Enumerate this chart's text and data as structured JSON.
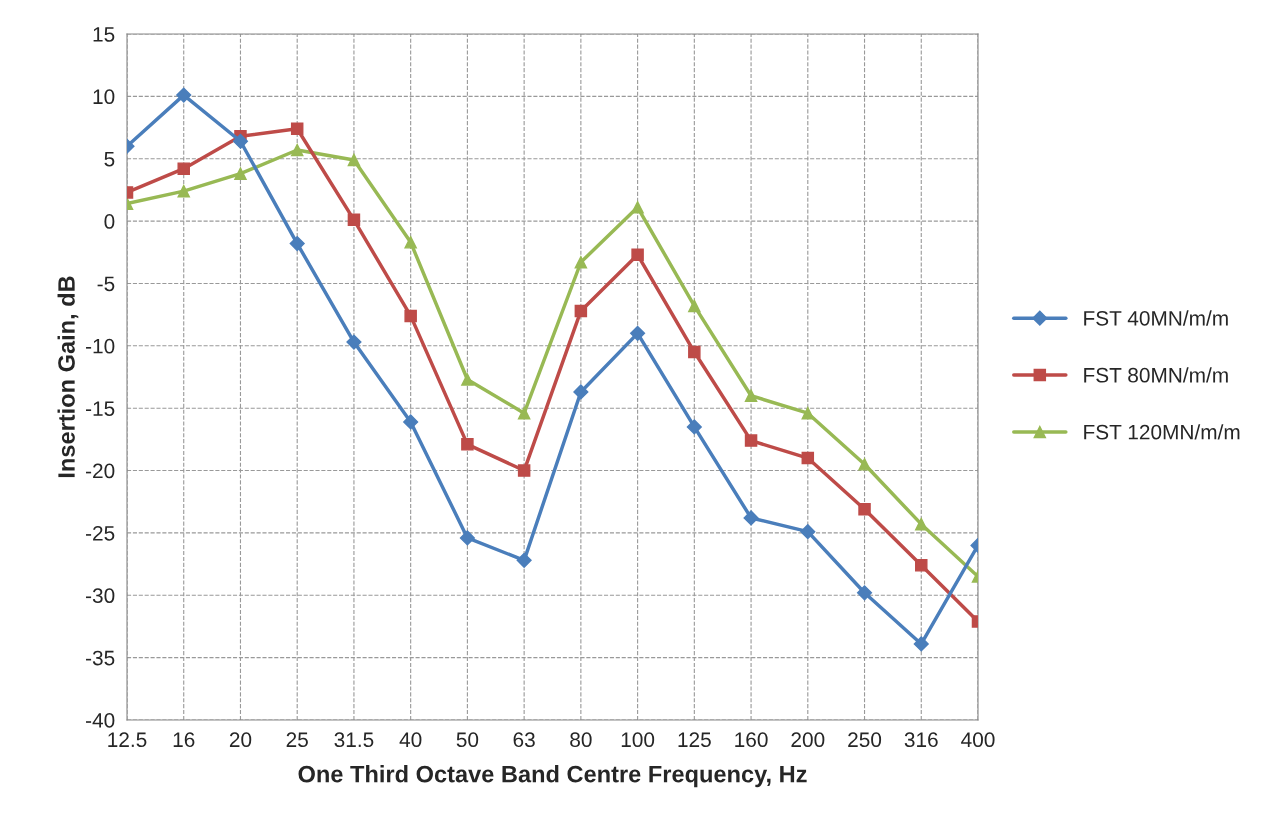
{
  "chart_data": {
    "type": "line",
    "xlabel": "One Third Octave Band Centre Frequency, Hz",
    "ylabel": "Insertion Gain, dB",
    "categories": [
      "12.5",
      "16",
      "20",
      "25",
      "31.5",
      "40",
      "50",
      "63",
      "80",
      "100",
      "125",
      "160",
      "200",
      "250",
      "316",
      "400"
    ],
    "series": [
      {
        "name": "FST 40MN/m/m",
        "color": "#4a7ebb",
        "marker": "diamond",
        "values": [
          6.0,
          10.1,
          6.4,
          -1.8,
          -9.7,
          -16.1,
          -25.4,
          -27.2,
          -13.7,
          -9.0,
          -16.5,
          -23.8,
          -24.9,
          -29.8,
          -33.9,
          -26.0
        ]
      },
      {
        "name": "FST 80MN/m/m",
        "color": "#be4b48",
        "marker": "square",
        "values": [
          2.3,
          4.2,
          6.8,
          7.4,
          0.1,
          -7.6,
          -17.9,
          -20.0,
          -7.2,
          -2.7,
          -10.5,
          -17.6,
          -19.0,
          -23.1,
          -27.6,
          -32.1
        ]
      },
      {
        "name": "FST 120MN/m/m",
        "color": "#98b954",
        "marker": "triangle",
        "values": [
          1.4,
          2.4,
          3.8,
          5.7,
          4.9,
          -1.7,
          -12.7,
          -15.4,
          -3.3,
          1.1,
          -6.8,
          -14.0,
          -15.4,
          -19.5,
          -24.3,
          -28.5
        ]
      }
    ],
    "ylim": [
      -40,
      15
    ],
    "yticks": [
      -40,
      -35,
      -30,
      -25,
      -20,
      -15,
      -10,
      -5,
      0,
      5,
      10,
      15
    ],
    "grid": true,
    "legend": "right",
    "line_style": "solid"
  }
}
